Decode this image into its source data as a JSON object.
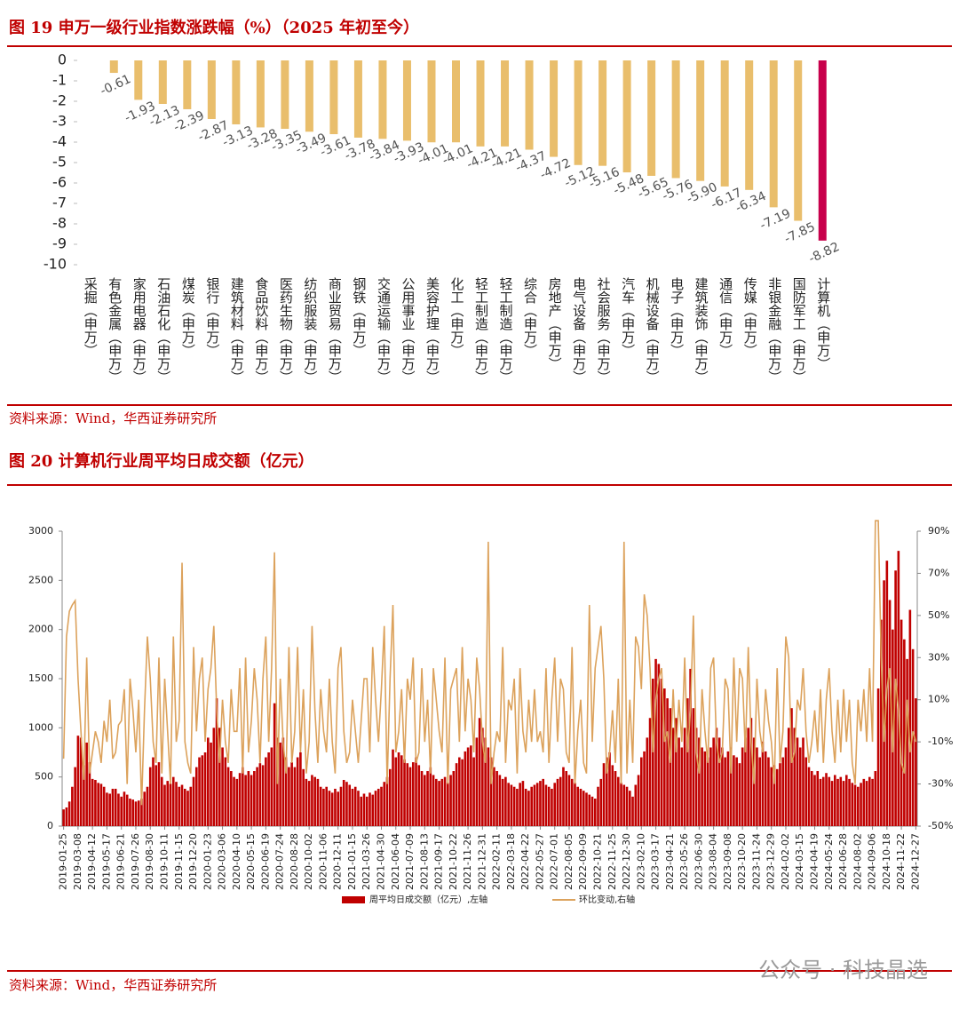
{
  "chart_data": [
    {
      "type": "bar",
      "title": "图 19  申万一级行业指数涨跌幅（%）（2025 年初至今）",
      "source": "资料来源：Wind，华西证券研究所",
      "categories": [
        "采掘（申万）",
        "有色金属（申万）",
        "家用电器（申万）",
        "石油石化（申万）",
        "煤炭（申万）",
        "银行（申万）",
        "建筑材料（申万）",
        "食品饮料（申万）",
        "医药生物（申万）",
        "纺织服装（申万）",
        "商业贸易（申万）",
        "钢铁（申万）",
        "交通运输（申万）",
        "公用事业（申万）",
        "美容护理（申万）",
        "化工（申万）",
        "轻工制造（申万）",
        "轻工制造（申万）",
        "综合（申万）",
        "房地产（申万）",
        "电气设备（申万）",
        "社会服务（申万）",
        "汽车（申万）",
        "机械设备（申万）",
        "电子（申万）",
        "建筑装饰（申万）",
        "通信（申万）",
        "传媒（申万）",
        "非银金融（申万）",
        "国防军工（申万）",
        "计算机（申万）"
      ],
      "values": [
        null,
        -0.61,
        -1.93,
        -2.13,
        -2.39,
        -2.87,
        -3.13,
        -3.28,
        -3.35,
        -3.49,
        -3.61,
        -3.78,
        -3.84,
        -3.93,
        -4.01,
        -4.01,
        -4.21,
        -4.21,
        -4.37,
        -4.72,
        -5.12,
        -5.16,
        -5.48,
        -5.65,
        -5.76,
        -5.9,
        -6.17,
        -6.34,
        -7.19,
        -7.85,
        -8.82
      ],
      "value_labels": [
        null,
        "-0.61",
        "-1.93",
        "-2.13",
        "-2.39",
        "-2.87",
        "-3.13",
        "-3.28",
        "-3.35",
        "-3.49",
        "-3.61",
        "-3.78",
        "-3.84",
        "-3.93",
        "-4.01",
        "-4.01",
        "-4.21",
        "-4.21",
        "-4.37",
        "-4.72",
        "-5.12",
        "-5.16",
        "-5.48",
        "-5.65",
        "-5.76",
        "-5.90",
        "-6.17",
        "-6.34",
        "-7.19",
        "-7.85",
        "-8.82"
      ],
      "color": "#E9BE6C",
      "highlight_color": "#C8004B",
      "highlight_index": 30,
      "ylim": [
        -10,
        0
      ],
      "yticks": [
        0,
        -1,
        -2,
        -3,
        -4,
        -5,
        -6,
        -7,
        -8,
        -9,
        -10
      ]
    },
    {
      "type": "bar_line",
      "title": "图 20  计算机行业周平均日成交额（亿元）",
      "source": "资料来源：Wind，华西证券研究所",
      "categories": [
        "2019-01-25",
        null,
        null,
        null,
        null,
        "2019-03-08",
        null,
        null,
        null,
        null,
        "2019-04-12",
        null,
        null,
        null,
        null,
        "2019-05-17",
        null,
        null,
        null,
        null,
        "2019-06-21",
        null,
        null,
        null,
        null,
        "2019-07-26",
        null,
        null,
        null,
        null,
        "2019-08-30",
        null,
        null,
        null,
        null,
        "2019-10-11",
        null,
        null,
        null,
        null,
        "2019-11-15",
        null,
        null,
        null,
        null,
        "2019-12-20",
        null,
        null,
        null,
        null,
        "2020-01-23",
        null,
        null,
        null,
        null,
        "2020-03-06",
        null,
        null,
        null,
        null,
        "2020-04-10",
        null,
        null,
        null,
        null,
        "2020-05-15",
        null,
        null,
        null,
        null,
        "2020-06-19",
        null,
        null,
        null,
        null,
        "2020-07-24",
        null,
        null,
        null,
        null,
        "2020-08-28",
        null,
        null,
        null,
        null,
        "2020-10-02",
        null,
        null,
        null,
        null,
        "2020-11-06",
        null,
        null,
        null,
        null,
        "2020-12-11",
        null,
        null,
        null,
        null,
        "2021-01-15",
        null,
        null,
        null,
        null,
        "2021-03-26",
        null,
        null,
        null,
        null,
        "2021-04-30",
        null,
        null,
        null,
        null,
        "2021-06-04",
        null,
        null,
        null,
        null,
        "2021-07-09",
        null,
        null,
        null,
        null,
        "2021-08-13",
        null,
        null,
        null,
        null,
        "2021-09-17",
        null,
        null,
        null,
        null,
        "2021-10-22",
        null,
        null,
        null,
        null,
        "2021-11-26",
        null,
        null,
        null,
        null,
        "2021-12-31",
        null,
        null,
        null,
        null,
        "2022-02-11",
        null,
        null,
        null,
        null,
        "2022-03-18",
        null,
        null,
        null,
        null,
        "2022-04-22",
        null,
        null,
        null,
        null,
        "2022-05-27",
        null,
        null,
        null,
        null,
        "2022-07-01",
        null,
        null,
        null,
        null,
        "2022-08-05",
        null,
        null,
        null,
        null,
        "2022-09-09",
        null,
        null,
        null,
        null,
        "2022-10-21",
        null,
        null,
        null,
        null,
        "2022-11-25",
        null,
        null,
        null,
        null,
        "2022-12-30",
        null,
        null,
        null,
        null,
        "2023-02-10",
        null,
        null,
        null,
        null,
        "2023-03-17",
        null,
        null,
        null,
        null,
        "2023-04-21",
        null,
        null,
        null,
        null,
        "2023-05-26",
        null,
        null,
        null,
        null,
        "2023-06-30",
        null,
        null,
        null,
        null,
        "2023-08-04",
        null,
        null,
        null,
        null,
        "2023-09-08",
        null,
        null,
        null,
        null,
        "2023-10-20",
        null,
        null,
        null,
        null,
        "2023-11-24",
        null,
        null,
        null,
        null,
        "2023-12-29",
        null,
        null,
        null,
        null,
        "2024-02-02",
        null,
        null,
        null,
        null,
        "2024-03-15",
        null,
        null,
        null,
        null,
        "2024-04-19",
        null,
        null,
        null,
        null,
        "2024-05-24",
        null,
        null,
        null,
        null,
        "2024-06-28",
        null,
        null,
        null,
        null,
        "2024-08-02",
        null,
        null,
        null,
        null,
        "2024-09-06",
        null,
        null,
        null,
        null,
        "2024-10-18",
        null,
        null,
        null,
        null,
        "2024-11-22",
        null,
        null,
        null,
        null,
        "2024-12-27"
      ],
      "series": [
        {
          "name": "周平均日成交额（亿元）,左轴",
          "color": "#C00000",
          "values": [
            170,
            190,
            250,
            400,
            600,
            920,
            900,
            620,
            850,
            650,
            480,
            470,
            440,
            430,
            400,
            340,
            330,
            380,
            380,
            330,
            300,
            350,
            320,
            280,
            270,
            250,
            260,
            280,
            350,
            400,
            600,
            700,
            620,
            650,
            500,
            420,
            460,
            430,
            500,
            450,
            400,
            420,
            380,
            360,
            400,
            500,
            600,
            700,
            720,
            750,
            900,
            850,
            1000,
            1300,
            1000,
            800,
            700,
            600,
            560,
            500,
            480,
            540,
            600,
            520,
            560,
            520,
            560,
            600,
            640,
            620,
            700,
            750,
            800,
            1250,
            900,
            850,
            900,
            700,
            600,
            650,
            600,
            700,
            750,
            580,
            480,
            460,
            520,
            500,
            480,
            400,
            380,
            400,
            360,
            340,
            380,
            350,
            400,
            470,
            450,
            420,
            380,
            400,
            360,
            300,
            330,
            300,
            340,
            320,
            360,
            380,
            400,
            450,
            500,
            580,
            780,
            700,
            750,
            720,
            680,
            640,
            600,
            650,
            700,
            620,
            560,
            520,
            560,
            600,
            520,
            480,
            460,
            480,
            500,
            440,
            520,
            560,
            640,
            700,
            680,
            760,
            800,
            820,
            700,
            900,
            1100,
            1000,
            900,
            800,
            700,
            600,
            560,
            520,
            480,
            500,
            440,
            420,
            400,
            380,
            440,
            460,
            380,
            360,
            400,
            420,
            440,
            460,
            480,
            420,
            400,
            380,
            440,
            480,
            500,
            600,
            560,
            520,
            480,
            440,
            400,
            380,
            360,
            340,
            320,
            300,
            280,
            400,
            480,
            640,
            700,
            750,
            620,
            560,
            500,
            440,
            420,
            400,
            360,
            300,
            420,
            520,
            700,
            760,
            900,
            1100,
            1500,
            1700,
            1650,
            1500,
            1400,
            1300,
            1200,
            1000,
            1100,
            900,
            800,
            1000,
            1300,
            1600,
            1200,
            1000,
            900,
            800,
            760,
            700,
            800,
            900,
            1000,
            900,
            800,
            700,
            760,
            800,
            720,
            700,
            640,
            800,
            900,
            1000,
            1100,
            900,
            800,
            700,
            860,
            760,
            700,
            600,
            620,
            580,
            640,
            700,
            800,
            1000,
            1200,
            1000,
            900,
            800,
            900,
            700,
            600,
            560,
            520,
            560,
            480,
            500,
            540,
            500,
            460,
            520,
            480,
            500,
            460,
            520,
            480,
            440,
            420,
            400,
            440,
            480,
            460,
            500,
            480,
            560,
            1400,
            2100,
            2500,
            2700,
            2300,
            2000,
            2600,
            2800,
            2100,
            1900,
            1700,
            2200,
            1800,
            1300
          ]
        },
        {
          "name": "环比变动,右轴",
          "color": "#DCA25C",
          "axis": "y2",
          "values": [
            -18,
            40,
            52,
            55,
            57,
            20,
            -5,
            -28,
            30,
            -25,
            -15,
            -5,
            -10,
            -20,
            0,
            -10,
            10,
            -18,
            -15,
            -2,
            0,
            15,
            -30,
            20,
            5,
            -15,
            10,
            -40,
            5,
            40,
            20,
            -10,
            -20,
            30,
            -25,
            20,
            -5,
            -30,
            40,
            -10,
            0,
            75,
            -10,
            -20,
            -25,
            35,
            -5,
            20,
            30,
            -10,
            15,
            25,
            45,
            5,
            -20,
            10,
            -10,
            -20,
            15,
            -5,
            -5,
            25,
            -25,
            30,
            -15,
            0,
            25,
            10,
            -20,
            20,
            40,
            -10,
            25,
            80,
            -30,
            20,
            -10,
            -25,
            35,
            -20,
            -5,
            35,
            -15,
            15,
            -25,
            -10,
            45,
            5,
            -20,
            15,
            -5,
            -15,
            20,
            -10,
            -25,
            25,
            35,
            -5,
            -20,
            -15,
            10,
            -5,
            -20,
            0,
            20,
            20,
            -15,
            35,
            10,
            -10,
            15,
            45,
            -30,
            20,
            55,
            -15,
            -5,
            15,
            -20,
            20,
            10,
            30,
            -20,
            -15,
            25,
            -10,
            10,
            -25,
            25,
            10,
            -5,
            -15,
            30,
            -30,
            15,
            20,
            25,
            -10,
            35,
            -5,
            20,
            10,
            -15,
            30,
            15,
            -10,
            -20,
            85,
            -30,
            -15,
            -5,
            -10,
            35,
            -20,
            10,
            5,
            20,
            -25,
            25,
            -5,
            -15,
            10,
            -10,
            15,
            -10,
            -5,
            -15,
            25,
            -20,
            10,
            30,
            -10,
            20,
            15,
            -15,
            -20,
            35,
            -30,
            -5,
            10,
            -20,
            -25,
            55,
            -10,
            25,
            35,
            45,
            20,
            -25,
            -15,
            5,
            -20,
            20,
            -30,
            85,
            -25,
            10,
            -20,
            40,
            35,
            15,
            60,
            50,
            25,
            -15,
            10,
            20,
            25,
            -10,
            -5,
            -20,
            15,
            -15,
            10,
            -10,
            30,
            -15,
            5,
            50,
            -15,
            -25,
            15,
            -5,
            -20,
            25,
            30,
            -10,
            -20,
            -15,
            20,
            15,
            -25,
            30,
            -10,
            25,
            20,
            -15,
            35,
            -10,
            -30,
            20,
            -5,
            -15,
            15,
            0,
            -10,
            -30,
            25,
            -20,
            -5,
            40,
            30,
            -20,
            -15,
            10,
            5,
            25,
            -5,
            -20,
            -10,
            5,
            -15,
            15,
            -20,
            10,
            25,
            -5,
            -20,
            10,
            -15,
            15,
            -10,
            10,
            -20,
            -30,
            10,
            -5,
            15,
            -10,
            25,
            -10,
            95,
            95,
            30,
            -10,
            15,
            25,
            -15,
            20,
            5,
            -20,
            -25,
            10,
            -15,
            -5,
            -10
          ]
        }
      ],
      "ylim": [
        0,
        3000
      ],
      "yticks": [
        0,
        500,
        1000,
        1500,
        2000,
        2500,
        3000
      ],
      "y2lim": [
        -50,
        90
      ],
      "y2ticks": [
        {
          "value": -50,
          "label": "-50%"
        },
        {
          "value": -30,
          "label": "-30%"
        },
        {
          "value": -10,
          "label": "-10%"
        },
        {
          "value": 10,
          "label": "10%"
        },
        {
          "value": 30,
          "label": "30%"
        },
        {
          "value": 50,
          "label": "50%"
        },
        {
          "value": 70,
          "label": "70%"
        },
        {
          "value": 90,
          "label": "90%"
        }
      ]
    }
  ],
  "watermark": "公众号 · 科技晶选"
}
